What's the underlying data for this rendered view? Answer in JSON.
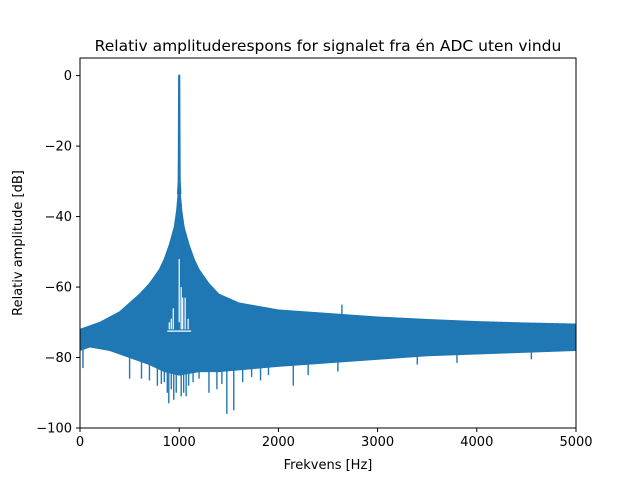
{
  "chart_data": {
    "type": "line",
    "title": "Relativ amplituderespons for signalet fra én ADC uten vindu",
    "xlabel": "Frekvens [Hz]",
    "ylabel": "Relativ amplitude [dB]",
    "xlim": [
      0,
      5000
    ],
    "ylim": [
      -100,
      5
    ],
    "xticks": [
      0,
      1000,
      2000,
      3000,
      4000,
      5000
    ],
    "xtick_labels": [
      "0",
      "1000",
      "2000",
      "3000",
      "4000",
      "5000"
    ],
    "yticks": [
      0,
      -20,
      -40,
      -60,
      -80,
      -100
    ],
    "ytick_labels": [
      "0",
      "−20",
      "−40",
      "−60",
      "−80",
      "−100"
    ],
    "grid": false,
    "color": "#1f77b4",
    "series": [
      {
        "peak_frequency": 1000,
        "peak_db": 0,
        "envelope_upper": {
          "x": [
            0,
            200,
            400,
            600,
            700,
            800,
            850,
            900,
            950,
            975,
            990,
            1000,
            1010,
            1025,
            1050,
            1100,
            1150,
            1200,
            1300,
            1400,
            1600,
            1800,
            2000,
            2500,
            3000,
            3500,
            4000,
            4500,
            5000
          ],
          "y": [
            -72,
            -70,
            -67,
            -62,
            -59,
            -55,
            -52,
            -48,
            -43,
            -38,
            -33,
            0,
            -33,
            -38,
            -43,
            -48,
            -52,
            -55,
            -59,
            -62,
            -64.5,
            -65.5,
            -66.5,
            -67.5,
            -68.5,
            -69.2,
            -69.8,
            -70.2,
            -70.5
          ]
        },
        "envelope_lower": {
          "x": [
            0,
            100,
            300,
            500,
            700,
            850,
            1000,
            1200,
            1400,
            1600,
            2000,
            2500,
            3000,
            3500,
            4000,
            4500,
            5000
          ],
          "y": [
            -78,
            -77,
            -78,
            -80,
            -82,
            -84,
            -85,
            -84,
            -84,
            -83.5,
            -82.5,
            -81.5,
            -80.5,
            -79.5,
            -79,
            -78.5,
            -78
          ]
        },
        "spurs": [
          {
            "x": 30,
            "y": -83
          },
          {
            "x": 500,
            "y": -86
          },
          {
            "x": 620,
            "y": -86
          },
          {
            "x": 700,
            "y": -86.5
          },
          {
            "x": 780,
            "y": -88
          },
          {
            "x": 820,
            "y": -87.5
          },
          {
            "x": 850,
            "y": -87
          },
          {
            "x": 880,
            "y": -90
          },
          {
            "x": 895,
            "y": -93
          },
          {
            "x": 920,
            "y": -89
          },
          {
            "x": 945,
            "y": -92
          },
          {
            "x": 970,
            "y": -90
          },
          {
            "x": 1020,
            "y": -91
          },
          {
            "x": 1045,
            "y": -90
          },
          {
            "x": 1070,
            "y": -91
          },
          {
            "x": 1095,
            "y": -88
          },
          {
            "x": 1140,
            "y": -87
          },
          {
            "x": 1200,
            "y": -86
          },
          {
            "x": 1300,
            "y": -90
          },
          {
            "x": 1380,
            "y": -89
          },
          {
            "x": 1430,
            "y": -87.5
          },
          {
            "x": 1480,
            "y": -96
          },
          {
            "x": 1550,
            "y": -95
          },
          {
            "x": 1640,
            "y": -87
          },
          {
            "x": 1730,
            "y": -85.5
          },
          {
            "x": 1820,
            "y": -86.5
          },
          {
            "x": 1900,
            "y": -85
          },
          {
            "x": 2150,
            "y": -88
          },
          {
            "x": 2300,
            "y": -85
          },
          {
            "x": 2600,
            "y": -84
          },
          {
            "x": 3400,
            "y": -82
          },
          {
            "x": 3800,
            "y": -81.5
          },
          {
            "x": 4550,
            "y": -80.5
          }
        ],
        "upper_spikes": [
          {
            "x": 940,
            "y": -65
          },
          {
            "x": 995,
            "y": -52
          },
          {
            "x": 1005,
            "y": -52
          },
          {
            "x": 1020,
            "y": -60
          },
          {
            "x": 1050,
            "y": -63
          },
          {
            "x": 2640,
            "y": -65
          }
        ],
        "inner_lines": [
          {
            "x": 1000,
            "y_top": -52,
            "y_bottom": -70
          },
          {
            "x": 1020,
            "y_top": -60,
            "y_bottom": -72
          },
          {
            "x": 1035,
            "y_top": -63,
            "y_bottom": -72
          },
          {
            "x": 1060,
            "y_top": -63,
            "y_bottom": -72
          },
          {
            "x": 1090,
            "y_top": -69,
            "y_bottom": -72
          },
          {
            "x": 940,
            "y_top": -66,
            "y_bottom": -72
          },
          {
            "x": 920,
            "y_top": -69,
            "y_bottom": -72
          },
          {
            "x": 900,
            "y_top": -70,
            "y_bottom": -72
          }
        ],
        "inner_gap": {
          "x1": 880,
          "x2": 1120,
          "y": -72.5
        }
      }
    ]
  }
}
